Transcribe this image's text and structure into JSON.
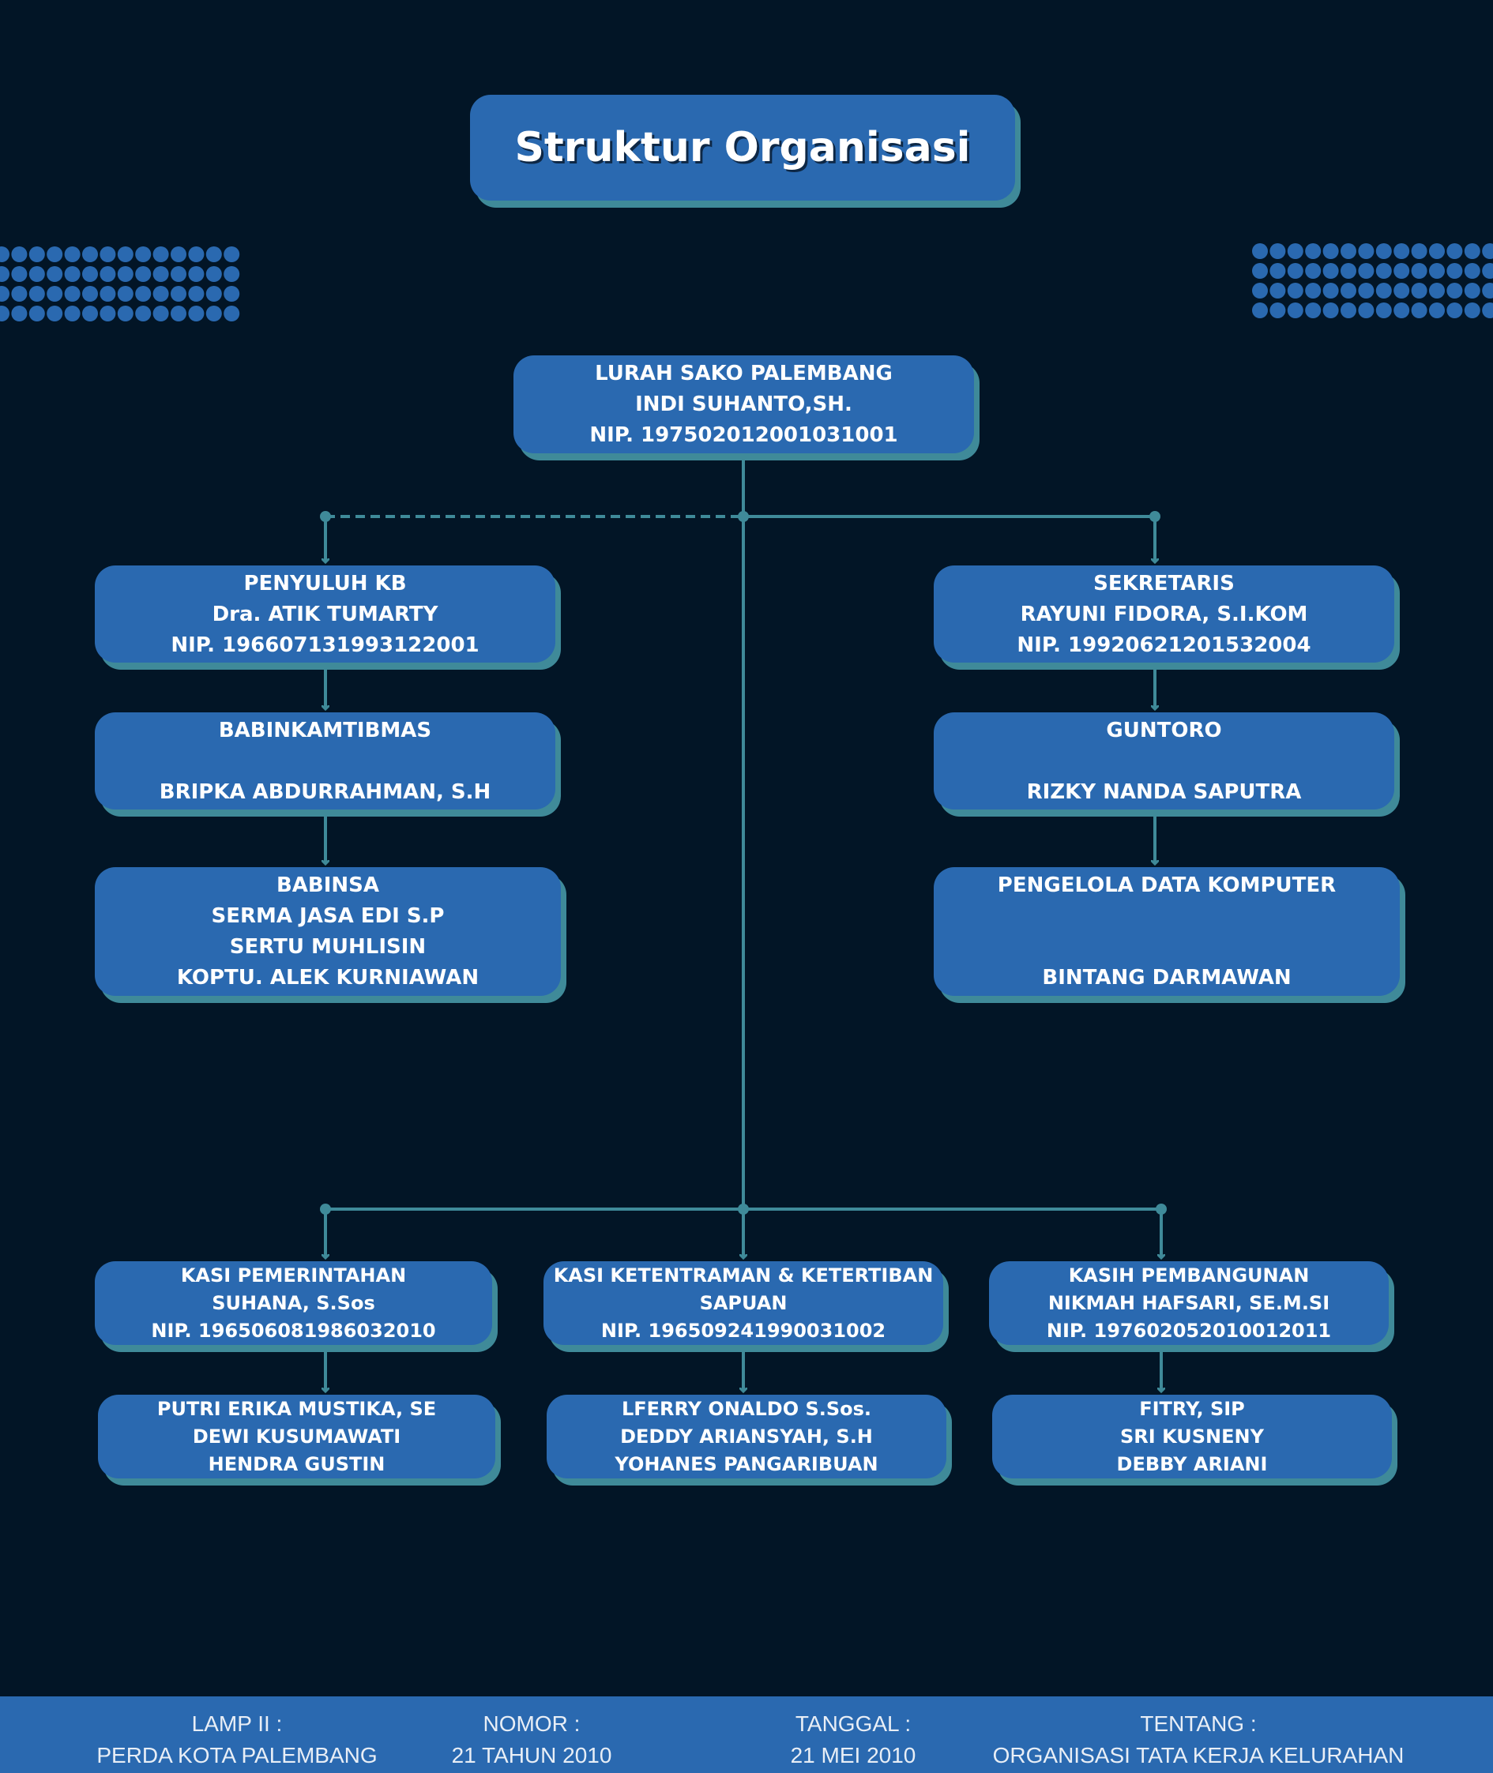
{
  "title": "Struktur Organisasi",
  "colors": {
    "background": "#021526",
    "box": "#2a69b0",
    "box_shadow": "#3f8a99",
    "connector": "#3f8a99",
    "dots": "#2a69b0"
  },
  "head": {
    "lines": [
      "LURAH SAKO PALEMBANG",
      "INDI SUHANTO,SH.",
      "NIP. 197502012001031001"
    ]
  },
  "left_branch": [
    {
      "lines": [
        "PENYULUH KB",
        "Dra. ATIK TUMARTY",
        "NIP. 196607131993122001"
      ]
    },
    {
      "lines": [
        "BABINKAMTIBMAS",
        "BRIPKA ABDURRAHMAN, S.H"
      ]
    },
    {
      "lines": [
        "BABINSA",
        "SERMA JASA EDI S.P",
        "SERTU MUHLISIN",
        "KOPTU. ALEK KURNIAWAN"
      ]
    }
  ],
  "right_branch": [
    {
      "lines": [
        "SEKRETARIS",
        "RAYUNI FIDORA, S.I.KOM",
        "NIP. 19920621201532004"
      ]
    },
    {
      "lines": [
        "GUNTORO",
        "RIZKY NANDA SAPUTRA"
      ]
    },
    {
      "lines": [
        "PENGELOLA DATA KOMPUTER",
        "BINTANG DARMAWAN"
      ]
    }
  ],
  "sections": [
    {
      "head": [
        "KASI PEMERINTAHAN",
        "SUHANA, S.Sos",
        "NIP. 196506081986032010"
      ],
      "staff": [
        "PUTRI ERIKA MUSTIKA, SE",
        "DEWI KUSUMAWATI",
        "HENDRA GUSTIN"
      ]
    },
    {
      "head": [
        "KASI KETENTRAMAN & KETERTIBAN",
        "SAPUAN",
        "NIP. 196509241990031002"
      ],
      "staff": [
        "LFERRY ONALDO S.Sos.",
        "DEDDY ARIANSYAH, S.H",
        "YOHANES PANGARIBUAN"
      ]
    },
    {
      "head": [
        "KASIH PEMBANGUNAN",
        "NIKMAH HAFSARI, SE.M.SI",
        "NIP. 197602052010012011"
      ],
      "staff": [
        "FITRY, SIP",
        "SRI KUSNENY",
        "DEBBY ARIANI"
      ]
    }
  ],
  "footer": [
    {
      "label": "LAMP II :",
      "value": "PERDA KOTA PALEMBANG"
    },
    {
      "label": "NOMOR :",
      "value": "21 TAHUN 2010"
    },
    {
      "label": "TANGGAL :",
      "value": "21 MEI 2010"
    },
    {
      "label": "TENTANG :",
      "value": "ORGANISASI TATA KERJA KELURAHAN"
    }
  ]
}
